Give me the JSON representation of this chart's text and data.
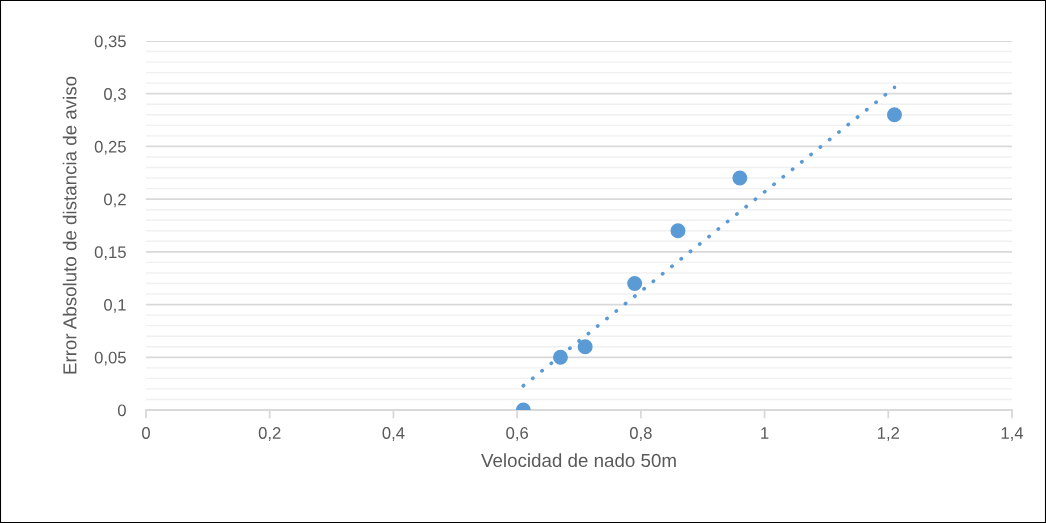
{
  "chart_data": {
    "type": "scatter",
    "xlabel": "Velocidad de nado 50m",
    "ylabel": "Error Absoluto de distancia de aviso",
    "marker": "circle",
    "grid": "y",
    "legend": false,
    "xlim": [
      0,
      1.4
    ],
    "ylim": [
      0,
      0.35
    ],
    "xticks": [
      0,
      {
        "value": 0.2,
        "label": "0,2"
      },
      {
        "value": 0.4,
        "label": "0,4"
      },
      {
        "value": 0.6,
        "label": "0,6"
      },
      {
        "value": 0.8,
        "label": "0,8"
      },
      1,
      {
        "value": 1.2,
        "label": "1,2"
      },
      {
        "value": 1.4,
        "label": "1,4"
      }
    ],
    "yticks": [
      0,
      {
        "value": 0.01,
        "label": null
      },
      {
        "value": 0.02,
        "label": null
      },
      {
        "value": 0.03,
        "label": null
      },
      {
        "value": 0.04,
        "label": null
      },
      {
        "value": 0.05,
        "label": "0,05"
      },
      {
        "value": 0.06,
        "label": null
      },
      {
        "value": 0.07,
        "label": null
      },
      {
        "value": 0.08,
        "label": null
      },
      {
        "value": 0.09,
        "label": null
      },
      {
        "value": 0.1,
        "label": "0,1"
      },
      {
        "value": 0.11,
        "label": null
      },
      {
        "value": 0.12,
        "label": null
      },
      {
        "value": 0.13,
        "label": null
      },
      {
        "value": 0.14,
        "label": null
      },
      {
        "value": 0.15,
        "label": "0,15"
      },
      {
        "value": 0.16,
        "label": null
      },
      {
        "value": 0.17,
        "label": null
      },
      {
        "value": 0.18,
        "label": null
      },
      {
        "value": 0.19,
        "label": null
      },
      {
        "value": 0.2,
        "label": "0,2"
      },
      {
        "value": 0.21,
        "label": null
      },
      {
        "value": 0.22,
        "label": null
      },
      {
        "value": 0.23,
        "label": null
      },
      {
        "value": 0.24,
        "label": null
      },
      {
        "value": 0.25,
        "label": "0,25"
      },
      {
        "value": 0.26,
        "label": null
      },
      {
        "value": 0.27,
        "label": null
      },
      {
        "value": 0.28,
        "label": null
      },
      {
        "value": 0.29,
        "label": null
      },
      {
        "value": 0.3,
        "label": "0,3"
      },
      {
        "value": 0.31,
        "label": null
      },
      {
        "value": 0.32,
        "label": null
      },
      {
        "value": 0.33,
        "label": null
      },
      {
        "value": 0.34,
        "label": null
      },
      {
        "value": 0.35,
        "label": "0,35"
      }
    ],
    "series": [
      {
        "color": "#5b9bd5",
        "x": [
          0.61,
          0.67,
          0.71,
          0.79,
          0.86,
          0.96,
          1.21
        ],
        "values": [
          0,
          0.05,
          0.06,
          0.12,
          0.17,
          0.22,
          0.28
        ]
      },
      {
        "type": "line",
        "color": "#5b9bd5",
        "line_style": "dotted",
        "marker": "none",
        "x": [
          0.61,
          1.21
        ],
        "values": [
          0.023,
          0.306
        ]
      }
    ]
  }
}
